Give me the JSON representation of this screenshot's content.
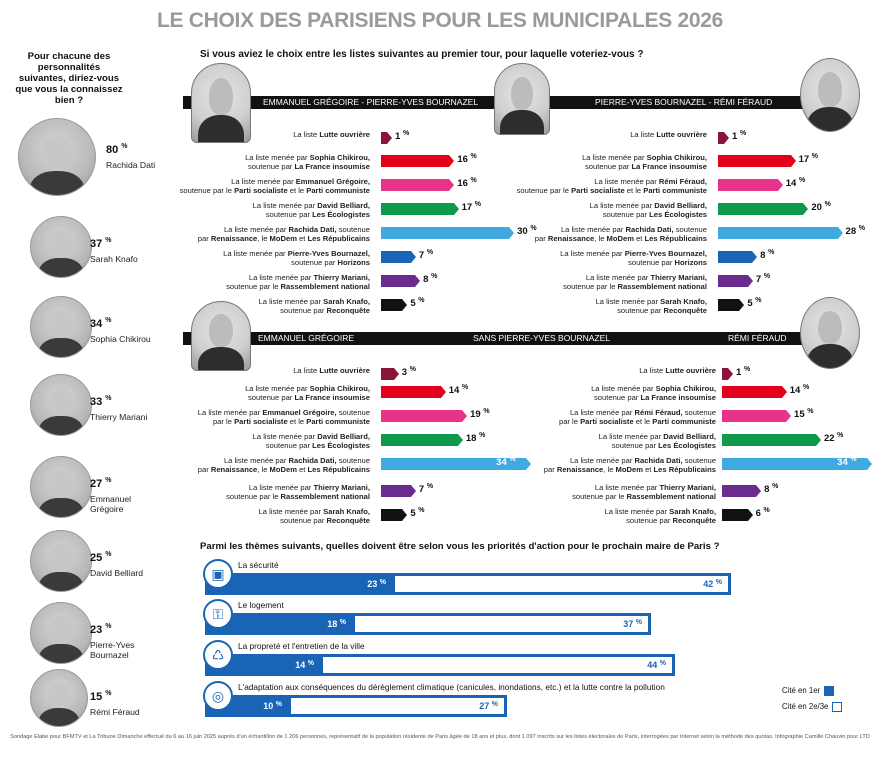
{
  "title": "LE CHOIX DES PARISIENS POUR LES MUNICIPALES 2026",
  "left_question": "Pour chacune des personnalités suivantes, diriez-vous que vous la connaissez bien ?",
  "top_question": "Si vous aviez le choix entre les listes suivantes au premier tour, pour laquelle voteriez-vous ?",
  "theme_question": "Parmi les thèmes suivants, quelles doivent être selon vous les priorités d'action pour le prochain maire de Paris ?",
  "footer": "Sondage Elabe pour BFMTV et La Tribune Dimanche effectué du 6 au 16 juin 2025 auprès d'un échantillon de 1 206 personnes, représentatif de la population résidente de Paris âgée de 18 ans et plus, dont 1 097 inscrits sur les listes électorales de Paris, interrogées par Internet selon la méthode des quotas. Infographie Camille Chauvin pour LTD",
  "banners": {
    "top_left": "EMMANUEL GRÉGOIRE - PIERRE-YVES BOURNAZEL",
    "top_right": "PIERRE-YVES BOURNAZEL - RÉMI FÉRAUD",
    "bottom_left": "EMMANUEL GRÉGOIRE",
    "bottom_mid": "SANS PIERRE-YVES BOURNAZEL",
    "bottom_right": "RÉMI FÉRAUD"
  },
  "legend": {
    "first": "Cité en 1er",
    "rest": "Cité en 2e/3e"
  },
  "chart_data": [
    {
      "type": "bar",
      "id": "notoriety",
      "categories": [
        "Rachida Dati",
        "Sarah Knafo",
        "Sophia Chikirou",
        "Thierry Mariani",
        "Emmanuel Grégoire",
        "David Belliard",
        "Pierre-Yves Bournazel",
        "Rémi Féraud"
      ],
      "values": [
        80,
        37,
        34,
        33,
        27,
        25,
        23,
        15
      ],
      "unit": "%"
    },
    {
      "type": "bar",
      "id": "scenario_1",
      "title": "EMMANUEL GRÉGOIRE - PIERRE-YVES BOURNAZEL",
      "labels": [
        [
          "La liste ",
          "Lutte ouvrière",
          ""
        ],
        [
          "La liste menée par ",
          "Sophia Chikirou,",
          "",
          "soutenue par ",
          "La France insoumise",
          ""
        ],
        [
          "La liste menée par ",
          "Emmanuel Grégoire,",
          "",
          "soutenue par le ",
          "Parti socialiste",
          " et le ",
          "Parti communiste",
          ""
        ],
        [
          "La liste menée par ",
          "David Belliard,",
          "",
          "soutenue par ",
          "Les Écologistes",
          ""
        ],
        [
          "La liste menée par ",
          "Rachida Dati,",
          " soutenue",
          "par ",
          "Renaissance",
          ", le ",
          "MoDem",
          " et ",
          "Les Républicains",
          ""
        ],
        [
          "La liste menée par ",
          "Pierre-Yves Bournazel,",
          "",
          "soutenue par ",
          "Horizons",
          ""
        ],
        [
          "La liste menée par ",
          "Thierry Mariani,",
          "",
          "soutenue par le ",
          "Rassemblement national",
          ""
        ],
        [
          "La liste menée par ",
          "Sarah Knafo,",
          "",
          "soutenue par ",
          "Reconquête",
          ""
        ]
      ],
      "values": [
        1,
        16,
        16,
        17,
        30,
        7,
        8,
        5
      ],
      "colors": [
        "#8a1538",
        "#e3001b",
        "#e8338b",
        "#0e9a4a",
        "#3fa9e0",
        "#1a64b5",
        "#6a2c8f",
        "#111111"
      ]
    },
    {
      "type": "bar",
      "id": "scenario_2",
      "title": "PIERRE-YVES BOURNAZEL - RÉMI FÉRAUD",
      "labels": [
        [
          "La liste ",
          "Lutte ouvrière",
          ""
        ],
        [
          "La liste menée par ",
          "Sophia Chikirou,",
          "",
          "soutenue par ",
          "La France insoumise",
          ""
        ],
        [
          "La liste menée par ",
          "Rémi Féraud,",
          "",
          "soutenue par le ",
          "Parti socialiste",
          " et le ",
          "Parti communiste",
          ""
        ],
        [
          "La liste menée par ",
          "David Belliard,",
          "",
          "soutenue par ",
          "Les Écologistes",
          ""
        ],
        [
          "La liste menée par ",
          "Rachida Dati,",
          " soutenue",
          "par ",
          "Renaissance",
          ", le ",
          "MoDem",
          " et ",
          "Les Républicains",
          ""
        ],
        [
          "La liste menée par ",
          "Pierre-Yves Bournazel,",
          "",
          "soutenue par ",
          "Horizons",
          ""
        ],
        [
          "La liste menée par ",
          "Thierry Mariani,",
          "",
          "soutenue par le ",
          "Rassemblement national",
          ""
        ],
        [
          "La liste menée par ",
          "Sarah Knafo,",
          "",
          "soutenue par ",
          "Reconquête",
          ""
        ]
      ],
      "values": [
        1,
        17,
        14,
        20,
        28,
        8,
        7,
        5
      ],
      "colors": [
        "#8a1538",
        "#e3001b",
        "#e8338b",
        "#0e9a4a",
        "#3fa9e0",
        "#1a64b5",
        "#6a2c8f",
        "#111111"
      ]
    },
    {
      "type": "bar",
      "id": "scenario_3",
      "title": "EMMANUEL GRÉGOIRE · SANS PIERRE-YVES BOURNAZEL",
      "labels": [
        [
          "La liste ",
          "Lutte ouvrière",
          ""
        ],
        [
          "La liste menée par ",
          "Sophia Chikirou,",
          "",
          "soutenue par ",
          "La France insoumise",
          ""
        ],
        [
          "La liste menée par ",
          "Emmanuel Grégoire,",
          " soutenue",
          "par le ",
          "Parti socialiste",
          " et le ",
          "Parti communiste",
          ""
        ],
        [
          "La liste menée par ",
          "David Belliard,",
          "",
          "soutenue par ",
          "Les Écologistes",
          ""
        ],
        [
          "La liste menée par ",
          "Rachida Dati,",
          " soutenue",
          "par ",
          "Renaissance",
          ", le ",
          "MoDem",
          " et ",
          "Les Républicains",
          ""
        ],
        [
          "La liste menée par ",
          "Thierry Mariani,",
          "",
          "soutenue par le ",
          "Rassemblement national",
          ""
        ],
        [
          "La liste menée par ",
          "Sarah Knafo,",
          "",
          "soutenue par ",
          "Reconquête",
          ""
        ]
      ],
      "values": [
        3,
        14,
        19,
        18,
        34,
        7,
        5
      ],
      "colors": [
        "#8a1538",
        "#e3001b",
        "#e8338b",
        "#0e9a4a",
        "#3fa9e0",
        "#6a2c8f",
        "#111111"
      ]
    },
    {
      "type": "bar",
      "id": "scenario_4",
      "title": "RÉMI FÉRAUD · SANS PIERRE-YVES BOURNAZEL",
      "labels": [
        [
          "La liste ",
          "Lutte ouvrière",
          ""
        ],
        [
          "La liste menée par ",
          "Sophia Chikirou,",
          "",
          "soutenue par ",
          "La France insoumise",
          ""
        ],
        [
          "La liste menée par ",
          "Rémi Féraud,",
          " soutenue",
          "par le ",
          "Parti socialiste",
          " et le ",
          "Parti communiste",
          ""
        ],
        [
          "La liste menée par ",
          "David Belliard,",
          "",
          "soutenue par ",
          "Les Écologistes",
          ""
        ],
        [
          "La liste menée par ",
          "Rachida Dati,",
          " soutenue",
          "par ",
          "Renaissance",
          ", le ",
          "MoDem",
          " et ",
          "Les Républicains",
          ""
        ],
        [
          "La liste menée par ",
          "Thierry Mariani,",
          "",
          "soutenue par le ",
          "Rassemblement national",
          ""
        ],
        [
          "La liste menée par ",
          "Sarah Knafo,",
          "",
          "soutenue par ",
          "Reconquête",
          ""
        ]
      ],
      "values": [
        1,
        14,
        15,
        22,
        34,
        8,
        6
      ],
      "colors": [
        "#8a1538",
        "#e3001b",
        "#e8338b",
        "#0e9a4a",
        "#3fa9e0",
        "#6a2c8f",
        "#111111"
      ]
    },
    {
      "type": "bar",
      "id": "themes",
      "categories": [
        "La sécurité",
        "Le logement",
        "La propreté et l'entretien de la ville",
        "L'adaptation aux conséquences du dérèglement climatique (canicules, inondations, etc.) et la lutte contre la pollution"
      ],
      "series": [
        {
          "name": "Cité en 1er",
          "values": [
            23,
            18,
            14,
            10
          ]
        },
        {
          "name": "Cité en 2e/3e",
          "values": [
            42,
            37,
            44,
            27
          ]
        }
      ],
      "icons": [
        "camera-icon",
        "key-icon",
        "trash-icon",
        "globe-icon"
      ],
      "color": "#1a64b5"
    }
  ]
}
